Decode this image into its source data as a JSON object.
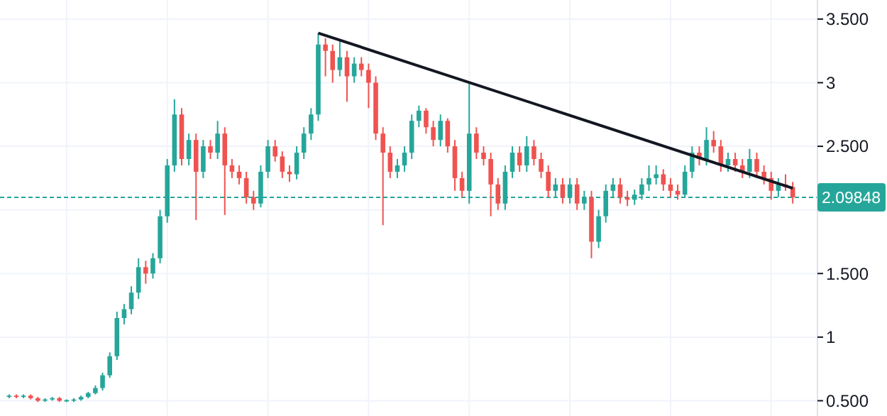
{
  "chart_data": {
    "type": "candlestick",
    "categories": [
      null,
      null,
      null,
      null,
      null,
      null,
      null,
      null,
      null,
      null,
      null,
      null,
      null,
      null,
      null,
      null,
      null,
      null,
      null,
      null,
      null,
      null,
      null,
      null,
      null,
      null,
      null,
      null,
      null,
      null,
      null,
      null,
      null,
      null,
      null,
      null,
      null,
      null,
      null,
      null,
      null,
      null,
      null,
      null,
      null,
      null,
      null,
      null,
      null,
      null,
      null,
      null,
      null,
      null,
      null,
      null,
      null,
      null,
      null,
      null,
      null,
      null,
      null,
      null,
      null,
      null,
      null,
      null,
      null,
      null,
      null,
      null,
      null,
      null,
      null,
      null,
      null,
      null,
      null,
      null,
      null,
      null,
      null,
      null,
      null,
      null,
      null,
      null,
      null,
      null,
      null,
      null,
      null,
      null,
      null,
      null,
      null,
      null,
      null,
      null,
      null,
      null,
      null,
      null,
      null,
      null,
      null,
      null,
      null,
      null
    ],
    "ohlc": [
      [
        0.53,
        0.55,
        0.52,
        0.54
      ],
      [
        0.54,
        0.55,
        0.52,
        0.53
      ],
      [
        0.53,
        0.55,
        0.52,
        0.54
      ],
      [
        0.54,
        0.55,
        0.51,
        0.52
      ],
      [
        0.52,
        0.53,
        0.49,
        0.5
      ],
      [
        0.5,
        0.52,
        0.49,
        0.51
      ],
      [
        0.51,
        0.53,
        0.5,
        0.52
      ],
      [
        0.52,
        0.53,
        0.49,
        0.5
      ],
      [
        0.5,
        0.51,
        0.49,
        0.5
      ],
      [
        0.5,
        0.52,
        0.49,
        0.51
      ],
      [
        0.51,
        0.54,
        0.5,
        0.53
      ],
      [
        0.53,
        0.57,
        0.52,
        0.56
      ],
      [
        0.56,
        0.62,
        0.55,
        0.6
      ],
      [
        0.6,
        0.72,
        0.58,
        0.7
      ],
      [
        0.7,
        0.88,
        0.68,
        0.85
      ],
      [
        0.85,
        1.2,
        0.82,
        1.15
      ],
      [
        1.15,
        1.26,
        1.1,
        1.22
      ],
      [
        1.22,
        1.4,
        1.18,
        1.35
      ],
      [
        1.35,
        1.62,
        1.3,
        1.55
      ],
      [
        1.55,
        1.6,
        1.42,
        1.5
      ],
      [
        1.5,
        1.66,
        1.46,
        1.62
      ],
      [
        1.62,
        2.0,
        1.58,
        1.95
      ],
      [
        1.95,
        2.4,
        1.9,
        2.35
      ],
      [
        2.35,
        2.87,
        2.3,
        2.75
      ],
      [
        2.75,
        2.8,
        2.35,
        2.4
      ],
      [
        2.4,
        2.6,
        2.35,
        2.55
      ],
      [
        2.55,
        2.6,
        1.92,
        2.3
      ],
      [
        2.3,
        2.55,
        2.25,
        2.5
      ],
      [
        2.5,
        2.55,
        2.4,
        2.45
      ],
      [
        2.45,
        2.7,
        2.4,
        2.6
      ],
      [
        2.6,
        2.65,
        1.96,
        2.35
      ],
      [
        2.35,
        2.4,
        2.25,
        2.3
      ],
      [
        2.3,
        2.35,
        2.2,
        2.25
      ],
      [
        2.25,
        2.3,
        2.05,
        2.1
      ],
      [
        2.1,
        2.15,
        2.0,
        2.05
      ],
      [
        2.05,
        2.35,
        2.02,
        2.3
      ],
      [
        2.3,
        2.55,
        2.25,
        2.5
      ],
      [
        2.5,
        2.55,
        2.38,
        2.42
      ],
      [
        2.42,
        2.46,
        2.25,
        2.3
      ],
      [
        2.3,
        2.35,
        2.22,
        2.28
      ],
      [
        2.28,
        2.5,
        2.24,
        2.45
      ],
      [
        2.45,
        2.65,
        2.4,
        2.6
      ],
      [
        2.6,
        2.8,
        2.55,
        2.75
      ],
      [
        2.75,
        3.39,
        2.7,
        3.3
      ],
      [
        3.3,
        3.35,
        3.05,
        3.25
      ],
      [
        3.25,
        3.3,
        3.0,
        3.1
      ],
      [
        3.1,
        3.34,
        3.05,
        3.2
      ],
      [
        3.2,
        3.25,
        2.85,
        3.05
      ],
      [
        3.05,
        3.2,
        3.0,
        3.15
      ],
      [
        3.15,
        3.2,
        3.05,
        3.1
      ],
      [
        3.1,
        3.15,
        2.8,
        3.0
      ],
      [
        3.0,
        3.05,
        2.55,
        2.6
      ],
      [
        2.6,
        2.65,
        1.88,
        2.45
      ],
      [
        2.45,
        2.5,
        2.25,
        2.3
      ],
      [
        2.3,
        2.4,
        2.25,
        2.35
      ],
      [
        2.35,
        2.5,
        2.3,
        2.45
      ],
      [
        2.45,
        2.75,
        2.4,
        2.7
      ],
      [
        2.7,
        2.82,
        2.65,
        2.78
      ],
      [
        2.78,
        2.8,
        2.6,
        2.65
      ],
      [
        2.65,
        2.7,
        2.5,
        2.55
      ],
      [
        2.55,
        2.75,
        2.5,
        2.7
      ],
      [
        2.7,
        2.72,
        2.45,
        2.5
      ],
      [
        2.5,
        2.55,
        2.15,
        2.25
      ],
      [
        2.25,
        2.3,
        2.1,
        2.15
      ],
      [
        2.15,
        3.0,
        2.05,
        2.6
      ],
      [
        2.6,
        2.65,
        2.4,
        2.45
      ],
      [
        2.45,
        2.5,
        2.35,
        2.4
      ],
      [
        2.4,
        2.45,
        1.95,
        2.2
      ],
      [
        2.2,
        2.25,
        2.0,
        2.05
      ],
      [
        2.05,
        2.35,
        2.0,
        2.3
      ],
      [
        2.3,
        2.5,
        2.25,
        2.45
      ],
      [
        2.45,
        2.5,
        2.3,
        2.35
      ],
      [
        2.35,
        2.58,
        2.3,
        2.5
      ],
      [
        2.5,
        2.55,
        2.35,
        2.4
      ],
      [
        2.4,
        2.45,
        2.25,
        2.3
      ],
      [
        2.3,
        2.35,
        2.1,
        2.15
      ],
      [
        2.15,
        2.25,
        2.1,
        2.2
      ],
      [
        2.2,
        2.25,
        2.05,
        2.1
      ],
      [
        2.1,
        2.25,
        2.05,
        2.2
      ],
      [
        2.2,
        2.25,
        2.0,
        2.05
      ],
      [
        2.05,
        2.15,
        2.0,
        2.1
      ],
      [
        2.1,
        2.15,
        1.62,
        1.75
      ],
      [
        1.75,
        2.0,
        1.7,
        1.95
      ],
      [
        1.95,
        2.2,
        1.9,
        2.15
      ],
      [
        2.15,
        2.25,
        2.1,
        2.2
      ],
      [
        2.2,
        2.25,
        2.05,
        2.1
      ],
      [
        2.1,
        2.15,
        2.03,
        2.08
      ],
      [
        2.08,
        2.16,
        2.04,
        2.12
      ],
      [
        2.12,
        2.25,
        2.08,
        2.2
      ],
      [
        2.2,
        2.35,
        2.15,
        2.25
      ],
      [
        2.25,
        2.35,
        2.2,
        2.28
      ],
      [
        2.28,
        2.32,
        2.15,
        2.2
      ],
      [
        2.2,
        2.25,
        2.1,
        2.15
      ],
      [
        2.15,
        2.2,
        2.08,
        2.12
      ],
      [
        2.12,
        2.35,
        2.1,
        2.3
      ],
      [
        2.3,
        2.5,
        2.25,
        2.45
      ],
      [
        2.45,
        2.5,
        2.35,
        2.4
      ],
      [
        2.4,
        2.65,
        2.35,
        2.55
      ],
      [
        2.55,
        2.62,
        2.45,
        2.5
      ],
      [
        2.5,
        2.55,
        2.3,
        2.35
      ],
      [
        2.35,
        2.45,
        2.3,
        2.4
      ],
      [
        2.4,
        2.45,
        2.3,
        2.35
      ],
      [
        2.35,
        2.4,
        2.25,
        2.3
      ],
      [
        2.3,
        2.48,
        2.25,
        2.4
      ],
      [
        2.4,
        2.45,
        2.25,
        2.3
      ],
      [
        2.3,
        2.35,
        2.2,
        2.25
      ],
      [
        2.25,
        2.3,
        2.08,
        2.15
      ],
      [
        2.15,
        2.25,
        2.1,
        2.2
      ],
      [
        2.2,
        2.28,
        2.15,
        2.18
      ],
      [
        2.18,
        2.22,
        2.05,
        2.1
      ]
    ],
    "series": [
      {
        "type": "line",
        "color": "#131722",
        "values": [
          null,
          null,
          null,
          null,
          null,
          null,
          null,
          null,
          null,
          null,
          null,
          null,
          null,
          null,
          null,
          null,
          null,
          null,
          null,
          null,
          null,
          null,
          null,
          null,
          null,
          null,
          null,
          null,
          null,
          null,
          null,
          null,
          null,
          null,
          null,
          null,
          null,
          null,
          null,
          null,
          null,
          null,
          null,
          3.39,
          null,
          null,
          null,
          null,
          null,
          null,
          null,
          null,
          null,
          null,
          null,
          null,
          null,
          null,
          null,
          null,
          null,
          null,
          null,
          null,
          null,
          null,
          null,
          null,
          null,
          null,
          null,
          null,
          null,
          null,
          null,
          null,
          null,
          null,
          null,
          null,
          null,
          null,
          null,
          null,
          null,
          null,
          null,
          null,
          null,
          null,
          null,
          null,
          null,
          null,
          null,
          null,
          null,
          null,
          null,
          null,
          null,
          null,
          null,
          null,
          null,
          null,
          null,
          null,
          null,
          2.17
        ]
      }
    ],
    "ylim": [
      0.38,
      3.65
    ],
    "yticks": [
      {
        "value": 0.5,
        "label": "0.500"
      },
      1,
      {
        "value": 1.5,
        "label": "1.500"
      },
      {
        "value": 2,
        "label": null
      },
      {
        "value": 2.5,
        "label": "2.500"
      },
      3,
      {
        "value": 3.5,
        "label": "3.500"
      }
    ],
    "ref_lines": [
      {
        "axis": "y",
        "value": 2.09848,
        "label": "2.09848",
        "color": "#26a69a",
        "line_style": "dashed"
      }
    ],
    "grid": true,
    "tick_labels": "y"
  }
}
